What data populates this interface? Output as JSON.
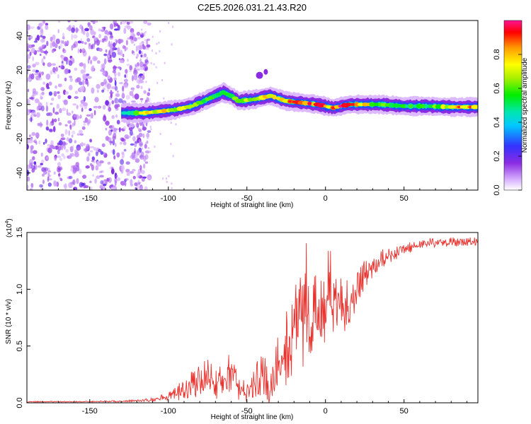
{
  "title": "C2E5.2026.031.21.43.R20",
  "colors": {
    "snr_line": "#e8332f",
    "ridge_core": "#ff0000",
    "scatter": "#8a2be2"
  },
  "chart_data": [
    {
      "type": "heatmap",
      "name": "spectrogram",
      "xlabel": "Height of straight line (km)",
      "ylabel": "Frequency (Hz)",
      "xlim": [
        -190,
        97
      ],
      "ylim": [
        -50,
        49
      ],
      "x_ticks": [
        -150,
        -100,
        -50,
        0,
        50
      ],
      "y_ticks": [
        -40,
        -20,
        0,
        20,
        40
      ],
      "grid": false,
      "noise_region_x": [
        -190,
        -120
      ],
      "ridge": {
        "x": [
          -125,
          -115,
          -105,
          -95,
          -85,
          -75,
          -65,
          -60,
          -55,
          -45,
          -35,
          -25,
          -15,
          -5,
          5,
          15,
          25,
          35,
          50,
          65,
          80,
          95
        ],
        "freq": [
          -5,
          -5,
          -4,
          -3,
          -1,
          3,
          7,
          5,
          2,
          3,
          5,
          2,
          1,
          0,
          -2,
          0,
          0,
          0,
          -1,
          -1,
          -1.5,
          -1.5
        ],
        "amplitude": [
          0.5,
          0.8,
          0.8,
          0.75,
          0.7,
          0.6,
          0.55,
          0.6,
          0.7,
          0.7,
          0.75,
          0.85,
          0.9,
          0.9,
          0.9,
          0.95,
          0.8,
          0.6,
          0.55,
          0.6,
          0.7,
          0.9
        ]
      },
      "colorbar": {
        "label": "Normalized spectral amplitude",
        "range": [
          0,
          1
        ],
        "ticks": [
          "0.0",
          "0.2",
          "0.4",
          "0.6",
          "0.8"
        ],
        "tick_values": [
          0,
          0.2,
          0.4,
          0.6,
          0.8
        ]
      }
    },
    {
      "type": "line",
      "name": "snr",
      "xlabel": "Height of straight line (km)",
      "ylabel": "SNR (10 * v/v)",
      "scale_label": "(x10^4)",
      "scale_label_base": "(x10",
      "scale_label_exp": "4",
      "xlim": [
        -190,
        97
      ],
      "ylim": [
        0,
        1.5
      ],
      "x_ticks": [
        -150,
        -100,
        -50,
        0,
        50
      ],
      "y_ticks": [
        "0.0",
        "0.5",
        "1.0",
        "1.5"
      ],
      "y_tick_values": [
        0,
        0.5,
        1.0,
        1.5
      ],
      "series": [
        {
          "name": "SNR",
          "x": [
            -190,
            -160,
            -130,
            -120,
            -110,
            -100,
            -95,
            -90,
            -85,
            -80,
            -75,
            -70,
            -65,
            -60,
            -55,
            -50,
            -45,
            -40,
            -35,
            -30,
            -25,
            -20,
            -15,
            -10,
            -5,
            0,
            5,
            10,
            15,
            20,
            25,
            30,
            35,
            40,
            50,
            60,
            70,
            80,
            90,
            97
          ],
          "y": [
            0.01,
            0.01,
            0.015,
            0.02,
            0.03,
            0.06,
            0.1,
            0.12,
            0.18,
            0.22,
            0.25,
            0.2,
            0.28,
            0.3,
            0.15,
            0.1,
            0.25,
            0.3,
            0.2,
            0.45,
            0.55,
            0.7,
            0.8,
            0.9,
            0.85,
            0.9,
            0.95,
            0.9,
            0.9,
            1.0,
            1.15,
            1.2,
            1.28,
            1.3,
            1.36,
            1.4,
            1.42,
            1.42,
            1.43,
            1.42
          ],
          "noise_amplitude": [
            0.005,
            0.005,
            0.008,
            0.01,
            0.02,
            0.04,
            0.08,
            0.12,
            0.15,
            0.15,
            0.2,
            0.18,
            0.2,
            0.2,
            0.15,
            0.1,
            0.2,
            0.25,
            0.25,
            0.3,
            0.4,
            0.45,
            0.5,
            0.5,
            0.45,
            0.4,
            0.35,
            0.3,
            0.25,
            0.2,
            0.15,
            0.12,
            0.1,
            0.08,
            0.06,
            0.05,
            0.05,
            0.05,
            0.05,
            0.05
          ]
        }
      ]
    }
  ]
}
